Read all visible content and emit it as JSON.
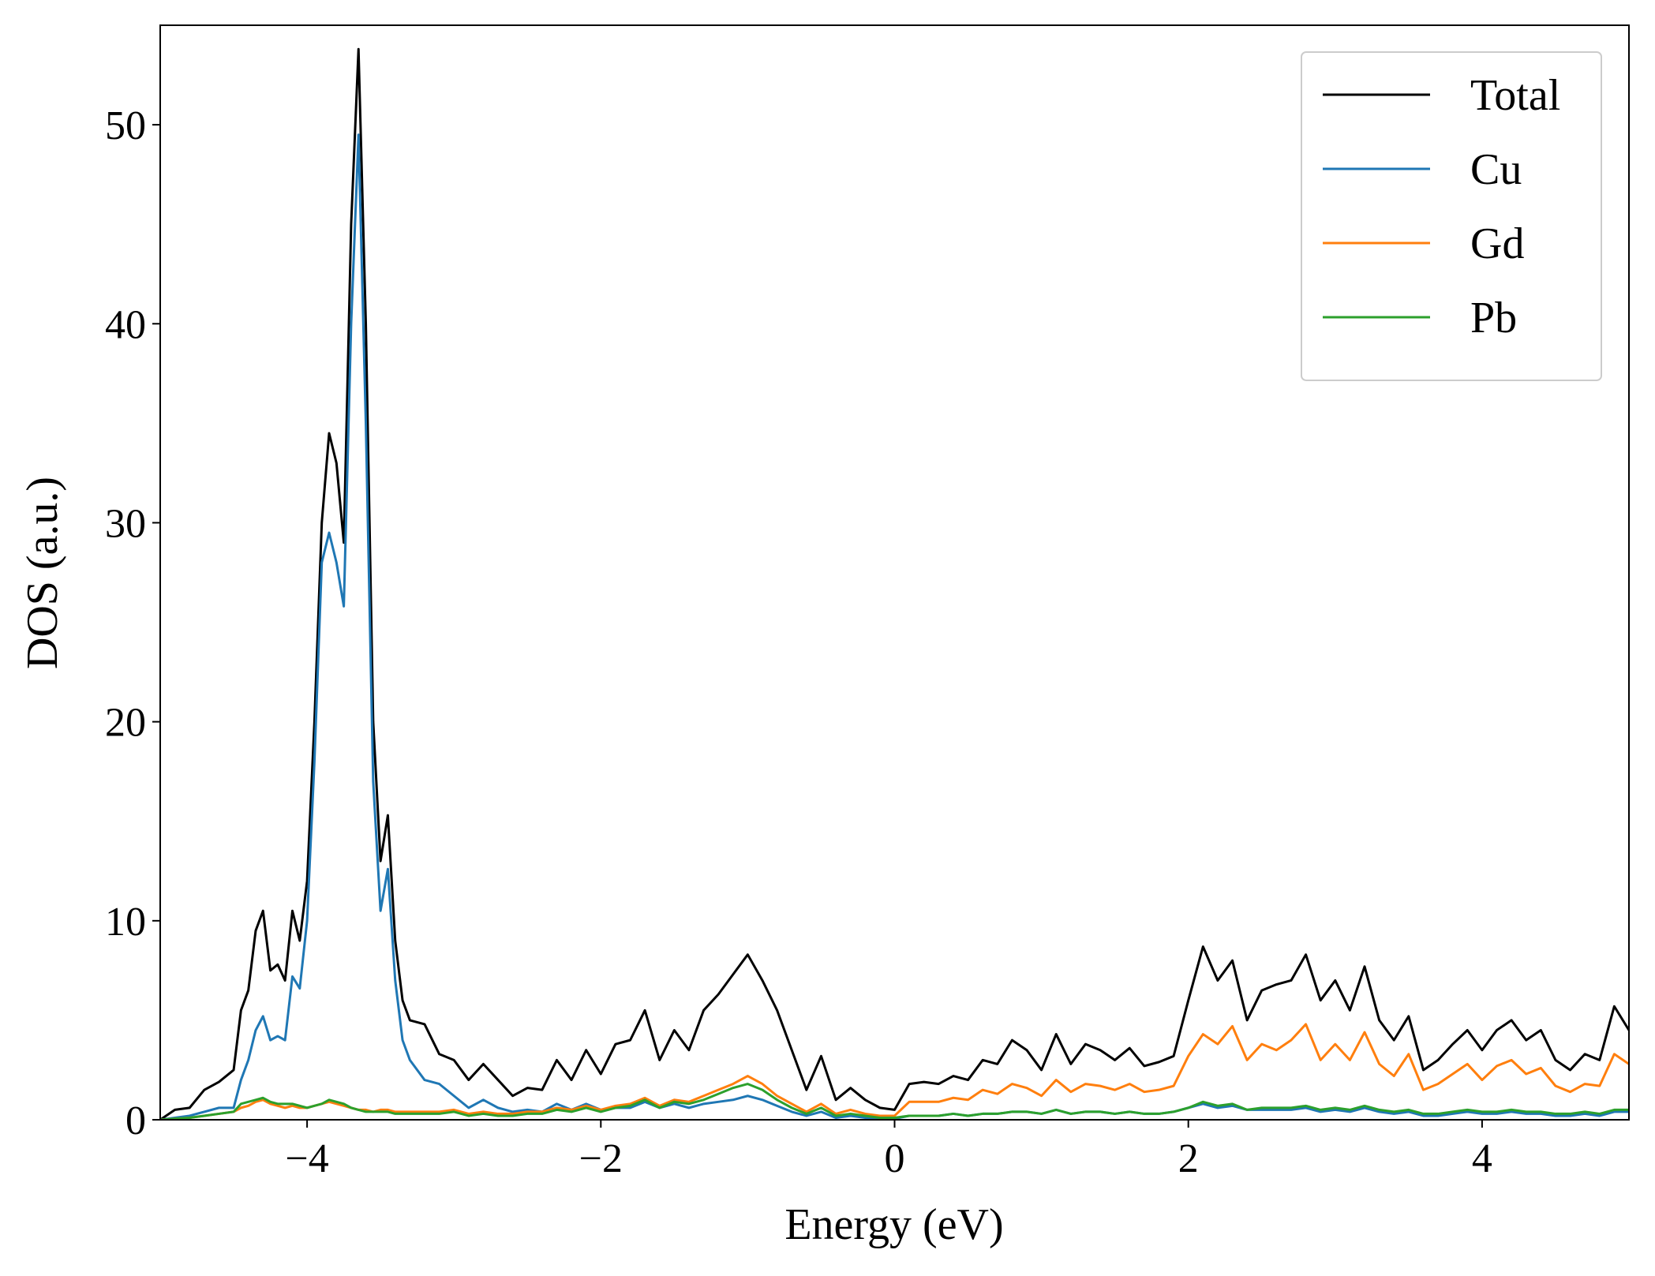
{
  "chart_data": {
    "type": "line",
    "xlabel": "Energy (eV)",
    "ylabel": "DOS (a.u.)",
    "x": [
      -5.0,
      -4.9,
      -4.8,
      -4.7,
      -4.6,
      -4.5,
      -4.45,
      -4.4,
      -4.35,
      -4.3,
      -4.25,
      -4.2,
      -4.15,
      -4.1,
      -4.05,
      -4.0,
      -3.95,
      -3.9,
      -3.85,
      -3.8,
      -3.75,
      -3.7,
      -3.65,
      -3.6,
      -3.55,
      -3.5,
      -3.45,
      -3.4,
      -3.35,
      -3.3,
      -3.2,
      -3.1,
      -3.0,
      -2.9,
      -2.8,
      -2.7,
      -2.6,
      -2.5,
      -2.4,
      -2.3,
      -2.2,
      -2.1,
      -2.0,
      -1.9,
      -1.8,
      -1.7,
      -1.6,
      -1.5,
      -1.4,
      -1.3,
      -1.2,
      -1.1,
      -1.0,
      -0.9,
      -0.8,
      -0.7,
      -0.6,
      -0.5,
      -0.4,
      -0.3,
      -0.2,
      -0.1,
      0.0,
      0.1,
      0.2,
      0.3,
      0.4,
      0.5,
      0.6,
      0.7,
      0.8,
      0.9,
      1.0,
      1.1,
      1.2,
      1.3,
      1.4,
      1.5,
      1.6,
      1.7,
      1.8,
      1.9,
      2.0,
      2.1,
      2.2,
      2.3,
      2.4,
      2.5,
      2.6,
      2.7,
      2.8,
      2.9,
      3.0,
      3.1,
      3.2,
      3.3,
      3.4,
      3.5,
      3.6,
      3.7,
      3.8,
      3.9,
      4.0,
      4.1,
      4.2,
      4.3,
      4.4,
      4.5,
      4.6,
      4.7,
      4.8,
      4.9,
      5.0
    ],
    "series": [
      {
        "name": "Total",
        "color": "#000000",
        "values": [
          0,
          0.5,
          0.6,
          1.5,
          1.9,
          2.5,
          5.5,
          6.5,
          9.5,
          10.5,
          7.5,
          7.8,
          7.0,
          10.5,
          9.0,
          12,
          20,
          30,
          34.5,
          33,
          29,
          45,
          53.8,
          40,
          20,
          13,
          15.3,
          9,
          6,
          5,
          4.8,
          3.3,
          3.0,
          2.0,
          2.8,
          2.0,
          1.2,
          1.6,
          1.5,
          3.0,
          2.0,
          3.5,
          2.3,
          3.8,
          4.0,
          5.5,
          3.0,
          4.5,
          3.5,
          5.5,
          6.3,
          7.3,
          8.3,
          7.0,
          5.5,
          3.5,
          1.5,
          3.2,
          1.0,
          1.6,
          1.0,
          0.6,
          0.5,
          1.8,
          1.9,
          1.8,
          2.2,
          2.0,
          3.0,
          2.8,
          4.0,
          3.5,
          2.5,
          4.3,
          2.8,
          3.8,
          3.5,
          3.0,
          3.6,
          2.7,
          2.9,
          3.2,
          6.0,
          8.7,
          7.0,
          8.0,
          5.0,
          6.5,
          6.8,
          7.0,
          8.3,
          6.0,
          7.0,
          5.5,
          7.7,
          5.0,
          4.0,
          5.2,
          2.5,
          3.0,
          3.8,
          4.5,
          3.5,
          4.5,
          5.0,
          4.0,
          4.5,
          3.0,
          2.5,
          3.3,
          3.0,
          5.7,
          4.5
        ]
      },
      {
        "name": "Cu",
        "color": "#1f77b4",
        "values": [
          0,
          0.1,
          0.2,
          0.4,
          0.6,
          0.6,
          2,
          3,
          4.5,
          5.2,
          4.0,
          4.2,
          4.0,
          7.2,
          6.6,
          10,
          18,
          28,
          29.5,
          28,
          25.8,
          40,
          49.5,
          35,
          17,
          10.5,
          12.6,
          7,
          4,
          3,
          2,
          1.8,
          1.2,
          0.6,
          1.0,
          0.6,
          0.4,
          0.5,
          0.4,
          0.8,
          0.5,
          0.8,
          0.5,
          0.6,
          0.6,
          0.9,
          0.6,
          0.8,
          0.6,
          0.8,
          0.9,
          1.0,
          1.2,
          1.0,
          0.7,
          0.4,
          0.2,
          0.4,
          0.1,
          0.2,
          0.1,
          0.1,
          0.05,
          0.2,
          0.2,
          0.2,
          0.3,
          0.2,
          0.3,
          0.3,
          0.4,
          0.4,
          0.3,
          0.5,
          0.3,
          0.4,
          0.4,
          0.3,
          0.4,
          0.3,
          0.3,
          0.4,
          0.6,
          0.8,
          0.6,
          0.7,
          0.5,
          0.5,
          0.5,
          0.5,
          0.6,
          0.4,
          0.5,
          0.4,
          0.6,
          0.4,
          0.3,
          0.4,
          0.2,
          0.2,
          0.3,
          0.4,
          0.3,
          0.3,
          0.4,
          0.3,
          0.3,
          0.2,
          0.2,
          0.3,
          0.2,
          0.4,
          0.4
        ]
      },
      {
        "name": "Gd",
        "color": "#ff7f0e",
        "values": [
          0,
          0.05,
          0.1,
          0.2,
          0.3,
          0.4,
          0.6,
          0.7,
          0.9,
          1.0,
          0.8,
          0.7,
          0.6,
          0.7,
          0.6,
          0.6,
          0.7,
          0.8,
          0.9,
          0.8,
          0.7,
          0.6,
          0.5,
          0.5,
          0.4,
          0.5,
          0.5,
          0.4,
          0.4,
          0.4,
          0.4,
          0.4,
          0.5,
          0.3,
          0.4,
          0.3,
          0.3,
          0.4,
          0.4,
          0.6,
          0.5,
          0.7,
          0.5,
          0.7,
          0.8,
          1.1,
          0.7,
          1.0,
          0.9,
          1.2,
          1.5,
          1.8,
          2.2,
          1.8,
          1.2,
          0.8,
          0.4,
          0.8,
          0.3,
          0.5,
          0.3,
          0.2,
          0.2,
          0.9,
          0.9,
          0.9,
          1.1,
          1.0,
          1.5,
          1.3,
          1.8,
          1.6,
          1.2,
          2.0,
          1.4,
          1.8,
          1.7,
          1.5,
          1.8,
          1.4,
          1.5,
          1.7,
          3.2,
          4.3,
          3.8,
          4.7,
          3.0,
          3.8,
          3.5,
          4.0,
          4.8,
          3.0,
          3.8,
          3.0,
          4.4,
          2.8,
          2.2,
          3.3,
          1.5,
          1.8,
          2.3,
          2.8,
          2.0,
          2.7,
          3.0,
          2.3,
          2.6,
          1.7,
          1.4,
          1.8,
          1.7,
          3.3,
          2.8
        ]
      },
      {
        "name": "Pb",
        "color": "#2ca02c",
        "values": [
          0,
          0.05,
          0.1,
          0.2,
          0.3,
          0.4,
          0.8,
          0.9,
          1.0,
          1.1,
          0.9,
          0.8,
          0.8,
          0.8,
          0.7,
          0.6,
          0.7,
          0.8,
          1.0,
          0.9,
          0.8,
          0.6,
          0.5,
          0.4,
          0.4,
          0.4,
          0.4,
          0.3,
          0.3,
          0.3,
          0.3,
          0.3,
          0.4,
          0.2,
          0.3,
          0.2,
          0.2,
          0.3,
          0.3,
          0.5,
          0.4,
          0.6,
          0.4,
          0.6,
          0.7,
          1.0,
          0.6,
          0.9,
          0.8,
          1.0,
          1.3,
          1.6,
          1.8,
          1.5,
          1.0,
          0.6,
          0.3,
          0.6,
          0.2,
          0.3,
          0.2,
          0.1,
          0.1,
          0.2,
          0.2,
          0.2,
          0.3,
          0.2,
          0.3,
          0.3,
          0.4,
          0.4,
          0.3,
          0.5,
          0.3,
          0.4,
          0.4,
          0.3,
          0.4,
          0.3,
          0.3,
          0.4,
          0.6,
          0.9,
          0.7,
          0.8,
          0.5,
          0.6,
          0.6,
          0.6,
          0.7,
          0.5,
          0.6,
          0.5,
          0.7,
          0.5,
          0.4,
          0.5,
          0.3,
          0.3,
          0.4,
          0.5,
          0.4,
          0.4,
          0.5,
          0.4,
          0.4,
          0.3,
          0.3,
          0.4,
          0.3,
          0.5,
          0.5
        ]
      }
    ],
    "xlim": [
      -5,
      5
    ],
    "ylim": [
      0,
      55
    ],
    "xticks": [
      {
        "value": -4,
        "label": "−4"
      },
      {
        "value": -2,
        "label": "−2"
      },
      0,
      2,
      4
    ],
    "yticks": [
      0,
      10,
      20,
      30,
      40,
      50
    ],
    "grid": false,
    "legend": "upper right"
  }
}
